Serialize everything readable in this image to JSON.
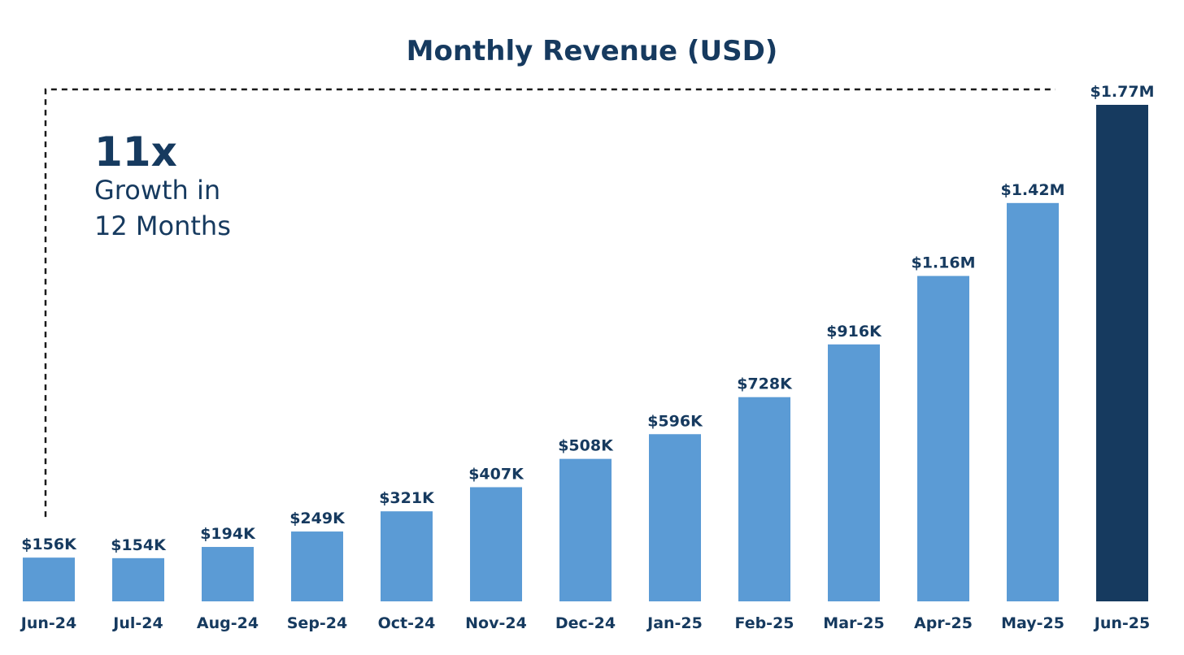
{
  "colors": {
    "bar": "#5b9bd5",
    "highlight_bar": "#163a5f",
    "text": "#163a5f",
    "bracket": "#1a1a1a",
    "background": "#ffffff"
  },
  "chart_data": {
    "type": "bar",
    "title": "Monthly Revenue (USD)",
    "xlabel": "",
    "ylabel": "",
    "ylim": [
      0,
      1.8
    ],
    "unit": "USD millions",
    "grid": false,
    "legend": "none",
    "categories": [
      "Jun-24",
      "Jul-24",
      "Aug-24",
      "Sep-24",
      "Oct-24",
      "Nov-24",
      "Dec-24",
      "Jan-25",
      "Feb-25",
      "Mar-25",
      "Apr-25",
      "May-25",
      "Jun-25"
    ],
    "values": [
      0.156,
      0.154,
      0.194,
      0.249,
      0.321,
      0.407,
      0.508,
      0.596,
      0.728,
      0.916,
      1.16,
      1.42,
      1.77
    ],
    "data_labels": [
      "$156K",
      "$154K",
      "$194K",
      "$249K",
      "$321K",
      "$407K",
      "$508K",
      "$596K",
      "$728K",
      "$916K",
      "$1.16M",
      "$1.42M",
      "$1.77M"
    ],
    "highlight_category": "Jun-25",
    "annotation": {
      "big": "11x",
      "lines": [
        "Growth in",
        "12 Months"
      ],
      "from_category": "Jun-24",
      "to_category": "Jun-25"
    }
  }
}
